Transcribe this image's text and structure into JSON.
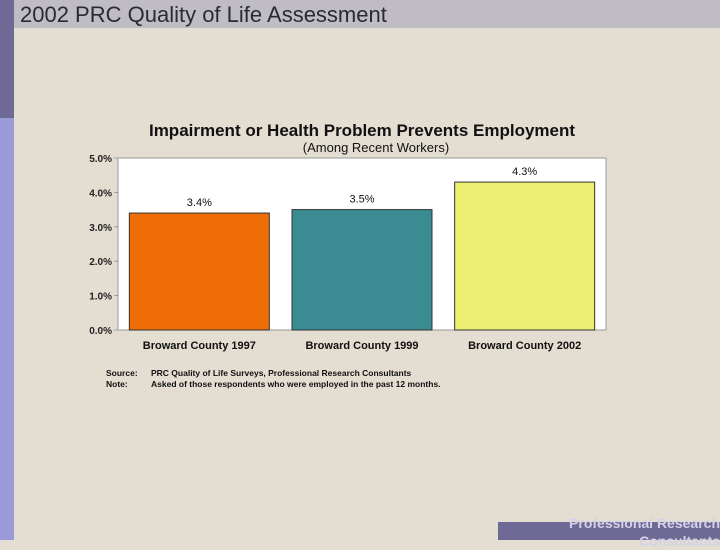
{
  "slide": {
    "title": "2002 PRC Quality of Life Assessment",
    "footer_line1": "Professional Research",
    "footer_line2": "Consultants"
  },
  "chart_data": {
    "type": "bar",
    "title": "Impairment or Health Problem Prevents Employment",
    "subtitle": "(Among Recent Workers)",
    "categories": [
      "Broward County 1997",
      "Broward County 1999",
      "Broward County 2002"
    ],
    "values": [
      3.4,
      3.5,
      4.3
    ],
    "data_labels": [
      "3.4%",
      "3.5%",
      "4.3%"
    ],
    "bar_colors": [
      "#ee6d06",
      "#3b8b92",
      "#ecef72"
    ],
    "ylim": [
      0,
      5
    ],
    "yticks": [
      0,
      1,
      2,
      3,
      4,
      5
    ],
    "ytick_labels": [
      "0.0%",
      "1.0%",
      "2.0%",
      "3.0%",
      "4.0%",
      "5.0%"
    ],
    "xlabel": "",
    "ylabel": "",
    "grid": false,
    "legend": "none"
  },
  "notes": {
    "source_key": "Source:",
    "source_text": "PRC Quality of Life Surveys, Professional Research Consultants",
    "note_key": "Note:",
    "note_text": "Asked of those respondents who were employed in the past 12 months."
  }
}
